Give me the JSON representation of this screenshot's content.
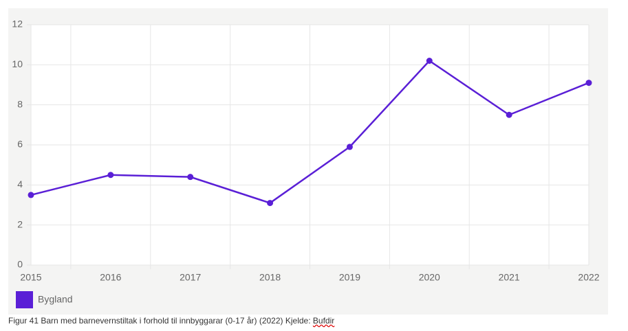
{
  "chart_data": {
    "type": "line",
    "categories": [
      "2015",
      "2016",
      "2017",
      "2018",
      "2019",
      "2020",
      "2021",
      "2022"
    ],
    "series": [
      {
        "name": "Bygland",
        "color": "#5a1fd6",
        "values": [
          3.5,
          4.5,
          4.4,
          3.1,
          5.9,
          10.2,
          7.5,
          9.1
        ]
      }
    ],
    "ylim": [
      0,
      12
    ],
    "yticks": [
      0,
      2,
      4,
      6,
      8,
      10,
      12
    ],
    "grid": true,
    "legend": "bottom-left"
  },
  "caption": {
    "text": "Figur 41 Barn med barnevernstiltak i forhold til innbyggarar (0-17 år) (2022) Kjelde:",
    "source": "Bufdir"
  }
}
